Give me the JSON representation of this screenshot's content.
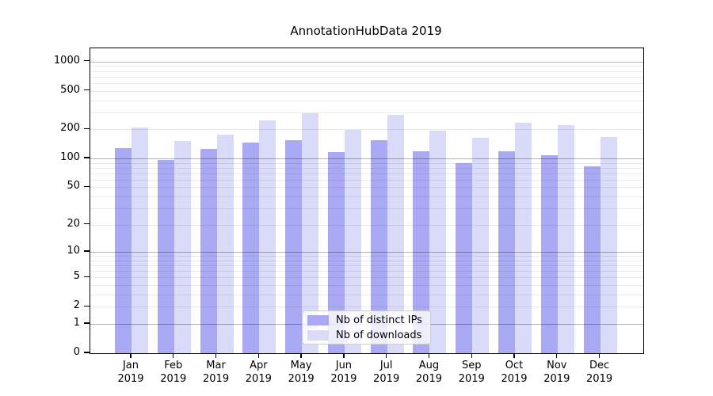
{
  "chart_data": {
    "type": "bar",
    "title": "AnnotationHubData 2019",
    "x_tick_months": [
      "Jan",
      "Feb",
      "Mar",
      "Apr",
      "May",
      "Jun",
      "Jul",
      "Aug",
      "Sep",
      "Oct",
      "Nov",
      "Dec"
    ],
    "x_tick_year": "2019",
    "y_ticks": [
      0,
      1,
      2,
      5,
      10,
      20,
      50,
      100,
      200,
      500,
      1000
    ],
    "y_minor_gridlines": [
      2,
      3,
      4,
      5,
      6,
      7,
      8,
      9,
      20,
      30,
      40,
      50,
      60,
      70,
      80,
      90,
      200,
      300,
      400,
      500,
      600,
      700,
      800,
      900
    ],
    "y_decade_gridlines": [
      1,
      10,
      100,
      1000
    ],
    "y_scale": "log10(value+1)",
    "y_top_value": 1370,
    "grid": true,
    "legend_position": "lower center, inside plot",
    "series": [
      {
        "name": "Nb of distinct IPs",
        "color": "#a9a9f4",
        "values": [
          127,
          97,
          126,
          146,
          155,
          117,
          154,
          118,
          90,
          119,
          107,
          83
        ]
      },
      {
        "name": "Nb of downloads",
        "color": "#dadaf9",
        "values": [
          211,
          152,
          178,
          248,
          295,
          198,
          280,
          193,
          163,
          235,
          221,
          167
        ]
      }
    ]
  }
}
